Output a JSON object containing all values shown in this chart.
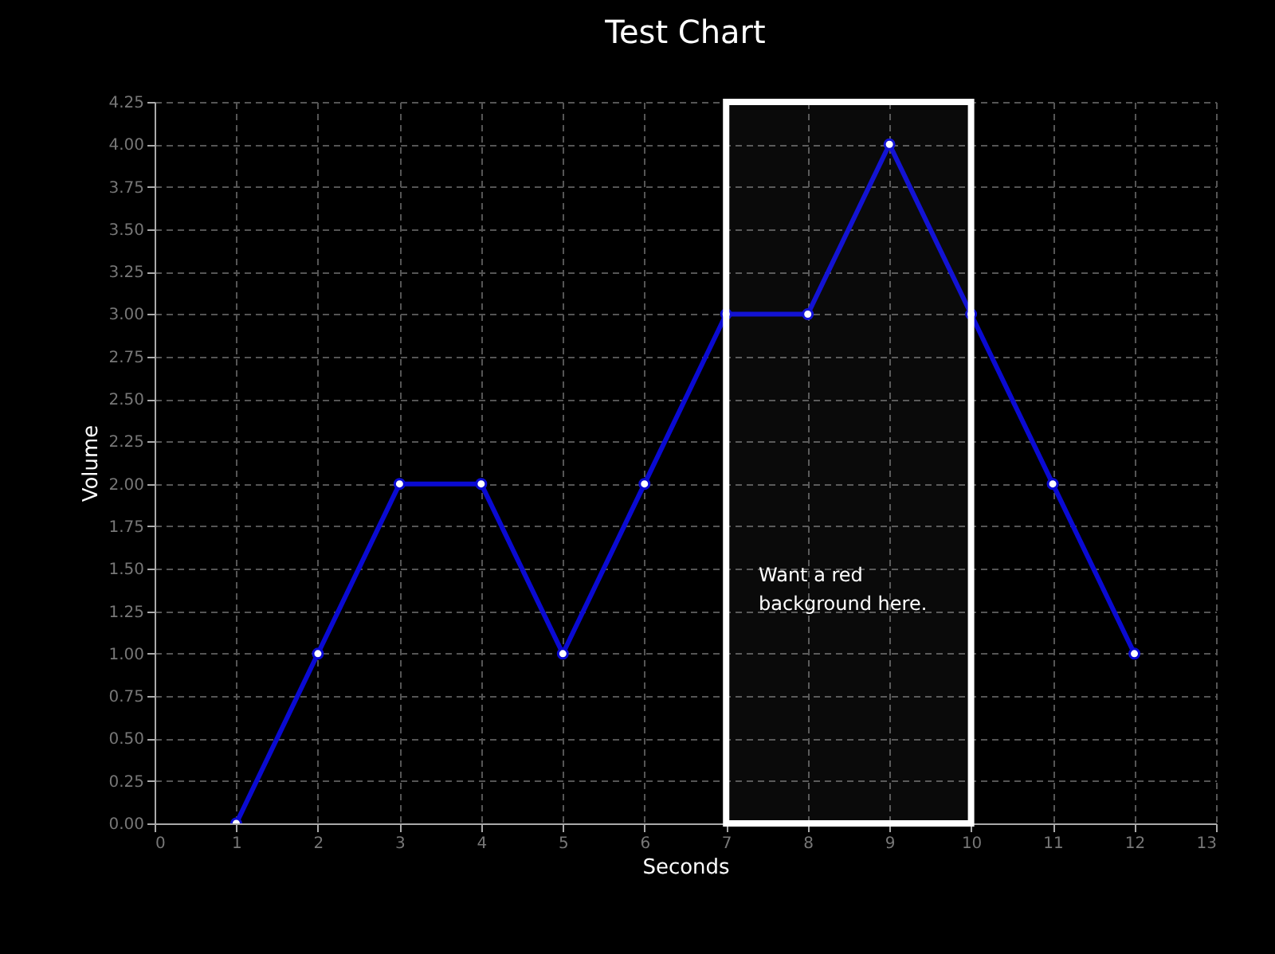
{
  "chart_data": {
    "type": "line",
    "title": "Test Chart",
    "xlabel": "Seconds",
    "ylabel": "Volume",
    "x": [
      1,
      2,
      3,
      4,
      5,
      6,
      7,
      8,
      9,
      10,
      11,
      12
    ],
    "series": [
      {
        "color": "#0a0ad2",
        "values": [
          0,
          1,
          2,
          2,
          1,
          2,
          3,
          3,
          4,
          3,
          2,
          1
        ]
      }
    ],
    "xlim": [
      0,
      13
    ],
    "xticks": [
      0,
      1,
      2,
      3,
      4,
      5,
      6,
      7,
      8,
      9,
      10,
      11,
      12,
      13
    ],
    "ylim": [
      0,
      4.25
    ],
    "yticks": [
      {
        "value": 0,
        "label": "0.00"
      },
      {
        "value": 0.25,
        "label": "0.25"
      },
      {
        "value": 0.5,
        "label": "0.50"
      },
      {
        "value": 0.75,
        "label": "0.75"
      },
      {
        "value": 1,
        "label": "1.00"
      },
      {
        "value": 1.25,
        "label": "1.25"
      },
      {
        "value": 1.5,
        "label": "1.50"
      },
      {
        "value": 1.75,
        "label": "1.75"
      },
      {
        "value": 2,
        "label": "2.00"
      },
      {
        "value": 2.25,
        "label": "2.25"
      },
      {
        "value": 2.5,
        "label": "2.50"
      },
      {
        "value": 2.75,
        "label": "2.75"
      },
      {
        "value": 3,
        "label": "3.00"
      },
      {
        "value": 3.25,
        "label": "3.25"
      },
      {
        "value": 3.5,
        "label": "3.50"
      },
      {
        "value": 3.75,
        "label": "3.75"
      },
      {
        "value": 4,
        "label": "4.00"
      },
      {
        "value": 4.25,
        "label": "4.25"
      }
    ],
    "bands": [
      {
        "axis": "x",
        "from": 7,
        "to": 10,
        "color": "#ffffff"
      }
    ],
    "annotations": [
      "Want a red\nbackground here."
    ],
    "grid": true,
    "marker": "circle",
    "line_style": "solid"
  }
}
